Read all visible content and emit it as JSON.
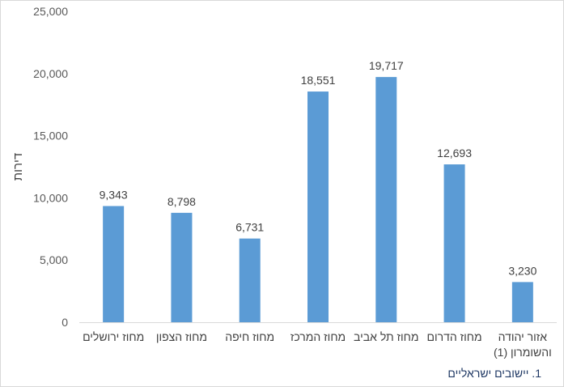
{
  "chart_data": {
    "type": "bar",
    "categories": [
      "מחוז ירושלים",
      "מחוז הצפון",
      "מחוז חיפה",
      "מחוז המרכז",
      "מחוז תל אביב",
      "מחוז הדרום",
      "אזור יהודה\nוהשומרון (1)"
    ],
    "values": [
      9343,
      8798,
      6731,
      18551,
      19717,
      12693,
      3230
    ],
    "data_labels": [
      "9,343",
      "8,798",
      "6,731",
      "18,551",
      "19,717",
      "12,693",
      "3,230"
    ],
    "ylabel": "דירות",
    "ylim": [
      0,
      25000
    ],
    "y_ticks": [
      "0",
      "5,000",
      "10,000",
      "15,000",
      "20,000",
      "25,000"
    ],
    "bar_color": "#5b9bd5",
    "grid": false,
    "legend": "none"
  },
  "footnote": "1. יישובים ישראליים"
}
